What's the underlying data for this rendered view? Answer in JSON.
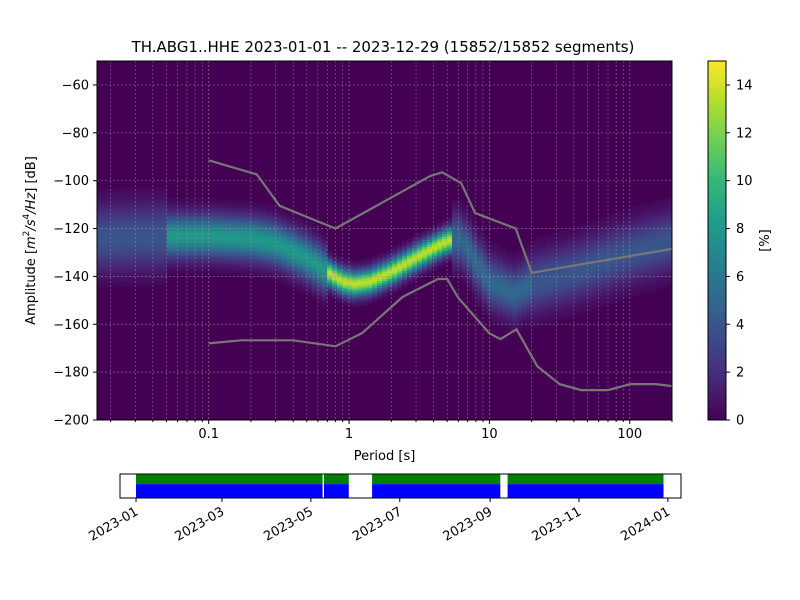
{
  "chart_data": [
    {
      "type": "heatmap",
      "title": "TH.ABG1..HHE   2023-01-01 -- 2023-12-29  (15852/15852 segments)",
      "xlabel": "Period [s]",
      "ylabel_text": "Amplitude [",
      "ylabel_unit_parts": [
        "m",
        "2",
        "/s",
        "4",
        "/Hz"
      ],
      "ylabel_tail": "] [dB]",
      "x_scale": "log",
      "xlim": [
        0.016,
        200
      ],
      "ylim": [
        -200,
        -50
      ],
      "x_ticks": [
        0.1,
        1,
        10,
        100
      ],
      "x_tick_labels": [
        "0.1",
        "1",
        "10",
        "100"
      ],
      "y_ticks": [
        -200,
        -180,
        -160,
        -140,
        -120,
        -100,
        -80,
        -60
      ],
      "y_tick_labels": [
        "−200",
        "−180",
        "−160",
        "−140",
        "−120",
        "−100",
        "−80",
        "−60"
      ],
      "grid": true,
      "colorbar": {
        "label": "[%]",
        "range": [
          0,
          15
        ],
        "ticks": [
          0,
          2,
          4,
          6,
          8,
          10,
          12,
          14
        ],
        "tick_labels": [
          "0",
          "2",
          "4",
          "6",
          "8",
          "10",
          "12",
          "14"
        ],
        "colormap": [
          "#440154",
          "#482878",
          "#3e4989",
          "#31688e",
          "#26828e",
          "#1f9e89",
          "#35b779",
          "#6ece58",
          "#b5de2b",
          "#fde725"
        ]
      },
      "mode_curve": {
        "x": [
          0.016,
          0.05,
          0.1,
          0.2,
          0.3,
          0.5,
          0.7,
          0.9,
          1.1,
          1.4,
          2,
          3,
          4,
          5,
          6,
          7,
          8,
          10,
          15,
          20,
          40,
          70,
          100,
          200
        ],
        "y": [
          -124,
          -123,
          -123,
          -124,
          -126,
          -132,
          -138,
          -142,
          -143,
          -142,
          -138,
          -132,
          -128,
          -125,
          -124,
          -128,
          -134,
          -142,
          -147,
          -143,
          -138,
          -133,
          -130,
          -125
        ]
      },
      "noise_model_high": {
        "x": [
          0.1,
          0.22,
          0.32,
          0.8,
          3.8,
          4.6,
          6.3,
          7.9,
          15.4,
          20,
          354.8
        ],
        "y": [
          -91.5,
          -97.4,
          -110.5,
          -120,
          -98,
          -96.5,
          -101,
          -113.5,
          -120,
          -138.5,
          -126
        ]
      },
      "noise_model_low": {
        "x": [
          0.1,
          0.17,
          0.4,
          0.8,
          1.24,
          2.4,
          4.3,
          5,
          6,
          10,
          12,
          15.6,
          21.9,
          31.6,
          45,
          70,
          101,
          154,
          328
        ],
        "y": [
          -168,
          -166.7,
          -166.7,
          -169.2,
          -163.7,
          -148.6,
          -141.1,
          -141.1,
          -149.0,
          -163.8,
          -166.2,
          -162.1,
          -177.5,
          -185.0,
          -187.5,
          -187.5,
          -185.0,
          -185.0,
          -187.5
        ]
      }
    },
    {
      "type": "timeline",
      "x_tick_labels": [
        "2023-01",
        "2023-03",
        "2023-05",
        "2023-07",
        "2023-09",
        "2023-11",
        "2024-01"
      ],
      "x_ticks": [
        "2023-01-01",
        "2023-03-01",
        "2023-05-01",
        "2023-07-01",
        "2023-09-01",
        "2023-11-01",
        "2024-01-01"
      ],
      "xlim": [
        "2022-12-21",
        "2024-01-10"
      ],
      "coverage_segments": [
        {
          "start": "2023-01-01",
          "end": "2023-05-09"
        },
        {
          "start": "2023-05-10",
          "end": "2023-05-27"
        },
        {
          "start": "2023-06-12",
          "end": "2023-09-08"
        },
        {
          "start": "2023-09-13",
          "end": "2023-12-29"
        }
      ],
      "colors": {
        "data": "#0000ff",
        "psd": "#008000"
      }
    }
  ]
}
